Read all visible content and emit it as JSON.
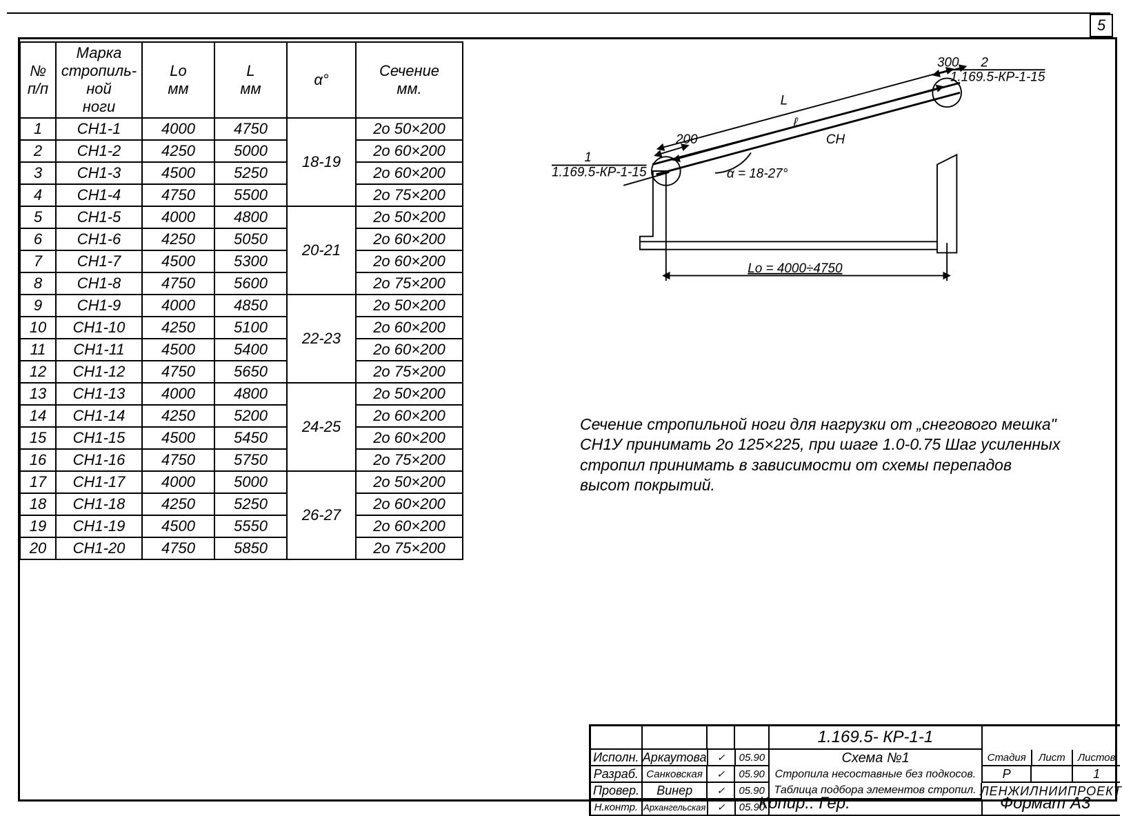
{
  "page_number": "5",
  "table": {
    "headers": {
      "n": "№\nп/п",
      "marka": "Марка\nстропиль-\nной\nноги",
      "lo": "Lо\nмм",
      "l": "L\nмм",
      "alpha": "α°",
      "sechenie": "Сечение\nмм."
    },
    "groups": [
      {
        "alpha": "18-19",
        "rows": [
          {
            "n": "1",
            "mk": "СН1-1",
            "lo": "4000",
            "l": "4750",
            "se": "2о 50×200"
          },
          {
            "n": "2",
            "mk": "СН1-2",
            "lo": "4250",
            "l": "5000",
            "se": "2о 60×200"
          },
          {
            "n": "3",
            "mk": "СН1-3",
            "lo": "4500",
            "l": "5250",
            "se": "2о 60×200"
          },
          {
            "n": "4",
            "mk": "СН1-4",
            "lo": "4750",
            "l": "5500",
            "se": "2о 75×200"
          }
        ]
      },
      {
        "alpha": "20-21",
        "rows": [
          {
            "n": "5",
            "mk": "СН1-5",
            "lo": "4000",
            "l": "4800",
            "se": "2о 50×200"
          },
          {
            "n": "6",
            "mk": "СН1-6",
            "lo": "4250",
            "l": "5050",
            "se": "2о 60×200"
          },
          {
            "n": "7",
            "mk": "СН1-7",
            "lo": "4500",
            "l": "5300",
            "se": "2о 60×200"
          },
          {
            "n": "8",
            "mk": "СН1-8",
            "lo": "4750",
            "l": "5600",
            "se": "2о 75×200"
          }
        ]
      },
      {
        "alpha": "22-23",
        "rows": [
          {
            "n": "9",
            "mk": "СН1-9",
            "lo": "4000",
            "l": "4850",
            "se": "2о 50×200"
          },
          {
            "n": "10",
            "mk": "СН1-10",
            "lo": "4250",
            "l": "5100",
            "se": "2о 60×200"
          },
          {
            "n": "11",
            "mk": "СН1-11",
            "lo": "4500",
            "l": "5400",
            "se": "2о 60×200"
          },
          {
            "n": "12",
            "mk": "СН1-12",
            "lo": "4750",
            "l": "5650",
            "se": "2о 75×200"
          }
        ]
      },
      {
        "alpha": "24-25",
        "rows": [
          {
            "n": "13",
            "mk": "СН1-13",
            "lo": "4000",
            "l": "4800",
            "se": "2о 50×200"
          },
          {
            "n": "14",
            "mk": "СН1-14",
            "lo": "4250",
            "l": "5200",
            "se": "2о 60×200"
          },
          {
            "n": "15",
            "mk": "СН1-15",
            "lo": "4500",
            "l": "5450",
            "se": "2о 60×200"
          },
          {
            "n": "16",
            "mk": "СН1-16",
            "lo": "4750",
            "l": "5750",
            "se": "2о 75×200"
          }
        ]
      },
      {
        "alpha": "26-27",
        "rows": [
          {
            "n": "17",
            "mk": "СН1-17",
            "lo": "4000",
            "l": "5000",
            "se": "2о 50×200"
          },
          {
            "n": "18",
            "mk": "СН1-18",
            "lo": "4250",
            "l": "5250",
            "se": "2о 60×200"
          },
          {
            "n": "19",
            "mk": "СН1-19",
            "lo": "4500",
            "l": "5550",
            "se": "2о 60×200"
          },
          {
            "n": "20",
            "mk": "СН1-20",
            "lo": "4750",
            "l": "5850",
            "se": "2о 75×200"
          }
        ]
      }
    ]
  },
  "diagram": {
    "ref_left": "1\n1.169.5-КР-1-15",
    "ref_right": "2\n1.169.5-КР-1-15",
    "dim_200": "200",
    "dim_300": "300",
    "label_L": "L",
    "label_l": "ℓ",
    "label_CH": "СН",
    "alpha": "α = 18-27°",
    "dim_Lo": "Lо = 4000÷4750"
  },
  "note": "Сечение стропильной ноги для нагрузки от „снегового мешка\" СН1У принимать 2о 125×225, при шаге 1.0-0.75 Шаг усиленных стропил принимать в зависимости от схемы перепадов высот покрытий.",
  "titleblock": {
    "doc_number": "1.169.5- КР-1-1",
    "title_line1": "Схема №1",
    "title_line2": "Стропила несоставные без подкосов.",
    "title_line3": "Таблица подбора элементов стропил.",
    "org": "ЛЕНЖИЛНИИПРОЕКТ",
    "stadiya_h": "Стадия",
    "list_h": "Лист",
    "listov_h": "Листов",
    "stadiya": "Р",
    "list": "",
    "listov": "1",
    "roles": {
      "ispoln": {
        "role": "Исполн.",
        "name": "Аркаутова",
        "date": "05.90"
      },
      "razrab": {
        "role": "Разраб.",
        "name": "Санковская",
        "date": "05.90"
      },
      "prover": {
        "role": "Провер.",
        "name": "Винер",
        "date": "05.90"
      },
      "nkontr": {
        "role": "Н.контр.",
        "name": "Архангельская",
        "date": "05.90"
      }
    }
  },
  "footer_left": "Копир.: Гер.",
  "footer_right": "Формат А3"
}
